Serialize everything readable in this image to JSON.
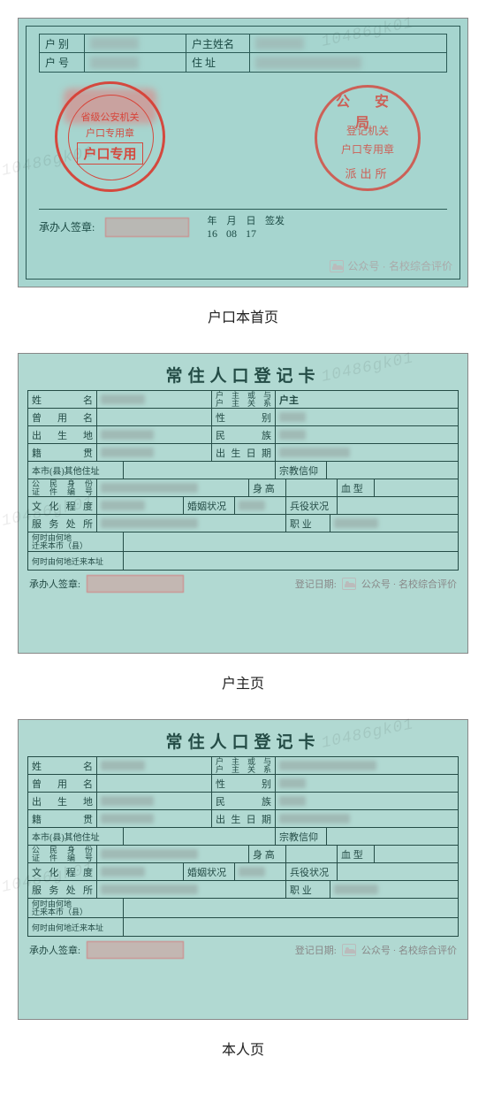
{
  "watermark": "10486gk01",
  "tagline": "公众号 · 名校综合评价",
  "captions": {
    "first": "户口本首页",
    "head": "户主页",
    "self": "本人页"
  },
  "first": {
    "bg": "#a6d5cf",
    "border": "#2a5a55",
    "labels": {
      "hb": "户  别",
      "hh": "户  号",
      "hzxm": "户主姓名",
      "zz": "住  址"
    },
    "stamp_left": {
      "line1": "省级公安机关",
      "line2": "户口专用章",
      "main": "户口专用",
      "color": "#d93a2f"
    },
    "stamp_right": {
      "top": "公 安 局",
      "mid1": "登记机关",
      "mid2": "户口专用章",
      "bot": "派出所"
    },
    "sign_label": "承办人签章:",
    "date": {
      "y_lab": "年",
      "m_lab": "月",
      "d_lab": "日",
      "end": "签发",
      "y": "16",
      "m": "08",
      "d": "17"
    }
  },
  "reg": {
    "title": "常住人口登记卡",
    "bg": "#b1d9d2",
    "rows": {
      "xm": "姓    名",
      "gx": "户主或与\n户主关系",
      "hz": "户主",
      "cym": "曾 用 名",
      "xb": "性    别",
      "csd": "出 生 地",
      "mz": "民    族",
      "jg": "籍    贯",
      "csrq": "出生日期",
      "other": "本市(县)其他住址",
      "zj": "宗教信仰",
      "sfz": "公民身份\n证件编号",
      "sg": "身 高",
      "xx": "血  型",
      "whcd": "文化程度",
      "hyk": "婚姻状况",
      "byz": "兵役状况",
      "fwcs": "服 务 处 所",
      "zy": "职  业",
      "move1": "何时由何地\n迁来本市（县）",
      "move2": "何时由何地迁来本址"
    },
    "sign_label": "承办人签章:",
    "djrq": "登记日期:"
  },
  "colors": {
    "page_bg": "#ffffff",
    "caption": "#222222"
  }
}
